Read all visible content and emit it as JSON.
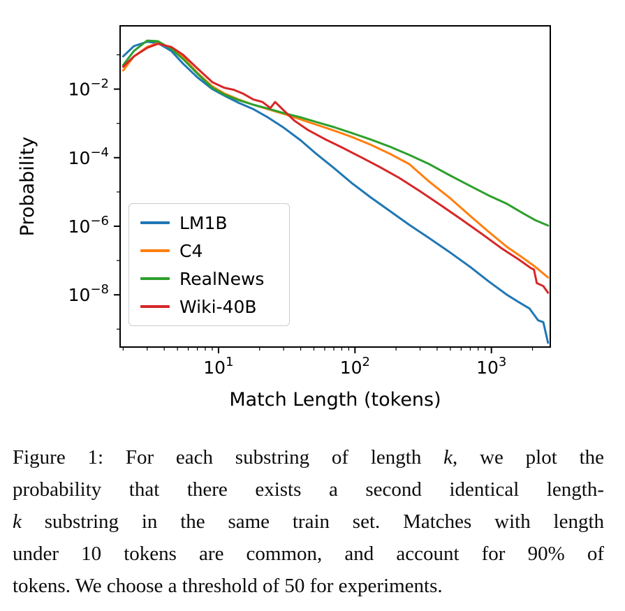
{
  "chart_data": {
    "type": "line",
    "title": "",
    "xlabel": "Match Length (tokens)",
    "ylabel": "Probability",
    "xscale": "log",
    "yscale": "log",
    "xlim": [
      1.9,
      2700
    ],
    "ylim": [
      3e-10,
      0.7
    ],
    "xticks": [
      10,
      100,
      1000
    ],
    "yticks": [
      0.01,
      0.0001,
      1e-06,
      1e-08
    ],
    "grid": false,
    "legend_position": "center-left",
    "series": [
      {
        "name": "LM1B",
        "color": "#1f77b4",
        "x": [
          2,
          2.4,
          3,
          3.6,
          4.5,
          5.5,
          7,
          9,
          11,
          14,
          18,
          23,
          30,
          40,
          52,
          70,
          95,
          130,
          180,
          250,
          350,
          500,
          700,
          950,
          1300,
          1600,
          1900,
          2200,
          2400,
          2600
        ],
        "y": [
          0.09,
          0.18,
          0.24,
          0.22,
          0.13,
          0.055,
          0.022,
          0.01,
          0.0065,
          0.004,
          0.0026,
          0.0015,
          0.00075,
          0.00032,
          0.00013,
          5e-05,
          1.8e-05,
          7e-06,
          2.8e-06,
          1.1e-06,
          4.5e-07,
          1.7e-07,
          6.5e-08,
          2.5e-08,
          1e-08,
          6e-09,
          4e-09,
          1.8e-09,
          1.6e-09,
          4e-10
        ]
      },
      {
        "name": "C4",
        "color": "#ff7f0e",
        "x": [
          2,
          2.4,
          3,
          3.6,
          4.5,
          5.5,
          7,
          9,
          11,
          14,
          18,
          23,
          30,
          40,
          52,
          70,
          95,
          130,
          180,
          250,
          350,
          500,
          700,
          950,
          1300,
          1700,
          2100,
          2600
        ],
        "y": [
          0.035,
          0.09,
          0.17,
          0.22,
          0.16,
          0.085,
          0.03,
          0.012,
          0.0075,
          0.005,
          0.0035,
          0.0026,
          0.0019,
          0.0013,
          0.00092,
          0.00062,
          0.0004,
          0.00024,
          0.00013,
          6.5e-05,
          2e-05,
          6.5e-06,
          2e-06,
          7e-07,
          2.5e-07,
          1.2e-07,
          6.5e-08,
          3.2e-08
        ]
      },
      {
        "name": "RealNews",
        "color": "#2ca02c",
        "x": [
          2,
          2.4,
          3,
          3.6,
          4.5,
          5.5,
          7,
          9,
          11,
          14,
          18,
          23,
          30,
          40,
          52,
          70,
          95,
          130,
          180,
          250,
          350,
          500,
          700,
          950,
          1300,
          1700,
          2100,
          2600
        ],
        "y": [
          0.05,
          0.13,
          0.26,
          0.25,
          0.15,
          0.075,
          0.028,
          0.011,
          0.007,
          0.0048,
          0.0035,
          0.0027,
          0.002,
          0.0015,
          0.0011,
          0.00078,
          0.00052,
          0.00034,
          0.00021,
          0.00012,
          6.5e-05,
          3e-05,
          1.5e-05,
          8e-06,
          4.5e-06,
          2.4e-06,
          1.5e-06,
          1.05e-06
        ]
      },
      {
        "name": "Wiki-40B",
        "color": "#d62728",
        "x": [
          2,
          2.4,
          3,
          3.6,
          4.5,
          5.5,
          7,
          9,
          11,
          13,
          15,
          18,
          21,
          24,
          26,
          30,
          36,
          45,
          60,
          80,
          110,
          150,
          210,
          300,
          430,
          600,
          850,
          1200,
          1600,
          1950,
          2050,
          2150,
          2400,
          2600
        ],
        "y": [
          0.045,
          0.09,
          0.16,
          0.21,
          0.17,
          0.1,
          0.04,
          0.016,
          0.011,
          0.0095,
          0.0075,
          0.005,
          0.0042,
          0.0028,
          0.0042,
          0.0024,
          0.0012,
          0.00065,
          0.00035,
          0.0002,
          0.000105,
          5.5e-05,
          2.6e-05,
          1.05e-05,
          4e-06,
          1.6e-06,
          6e-07,
          2.2e-07,
          1.05e-07,
          6e-08,
          5.5e-08,
          2.2e-08,
          1.8e-08,
          1.15e-08
        ]
      }
    ]
  },
  "caption": {
    "lines": [
      [
        {
          "t": "Figure 1:  For each substring of length "
        },
        {
          "t": "k",
          "i": true
        },
        {
          "t": ", we plot the"
        }
      ],
      [
        {
          "t": "probability that there exists a second identical length-"
        }
      ],
      [
        {
          "t": "k",
          "i": true
        },
        {
          "t": " substring in the same train set.  Matches with length"
        }
      ],
      [
        {
          "t": "under 10 tokens are common, and account for 90% of"
        }
      ],
      [
        {
          "t": "tokens.  We choose a threshold of 50 for experiments."
        }
      ]
    ]
  }
}
